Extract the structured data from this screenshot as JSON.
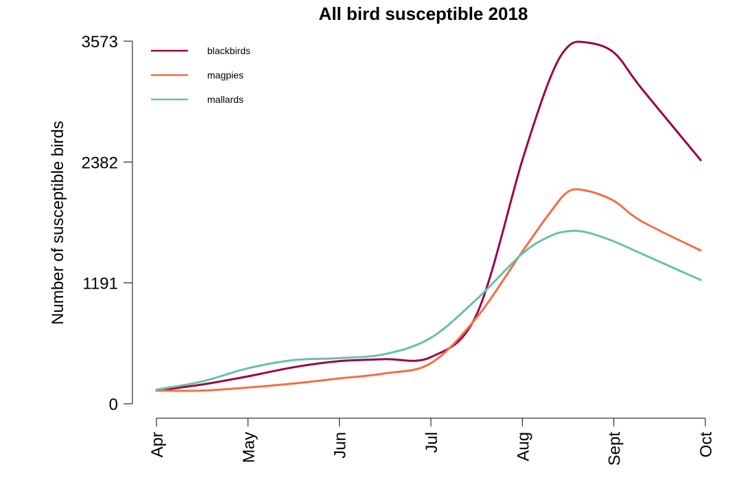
{
  "chart_data": {
    "type": "line",
    "title": "All bird susceptible 2018",
    "xlabel": "",
    "ylabel": "Number of susceptible birds",
    "x_ticks": [
      "Apr",
      "May",
      "Jun",
      "Jul",
      "Aug",
      "Sept",
      "Oct"
    ],
    "y_ticks": [
      0,
      1191,
      2382,
      3573
    ],
    "ylim": [
      0,
      3573
    ],
    "x": [
      0,
      0.5,
      1,
      1.5,
      2,
      2.5,
      3,
      3.5,
      4,
      4.3,
      4.5,
      4.7,
      5,
      5.3,
      5.95
    ],
    "series": [
      {
        "name": "blackbirds",
        "color": "#9e0142",
        "values": [
          130,
          190,
          270,
          360,
          420,
          440,
          460,
          880,
          2400,
          3200,
          3520,
          3560,
          3460,
          3110,
          2400
        ]
      },
      {
        "name": "magpies",
        "color": "#f46d43",
        "values": [
          130,
          130,
          160,
          200,
          250,
          300,
          400,
          850,
          1500,
          1880,
          2090,
          2100,
          2000,
          1800,
          1510
        ]
      },
      {
        "name": "mallards",
        "color": "#66c2a5",
        "values": [
          140,
          220,
          350,
          430,
          450,
          490,
          650,
          1030,
          1480,
          1650,
          1700,
          1690,
          1600,
          1480,
          1220
        ]
      }
    ],
    "legend": "top-left",
    "grid": false
  }
}
